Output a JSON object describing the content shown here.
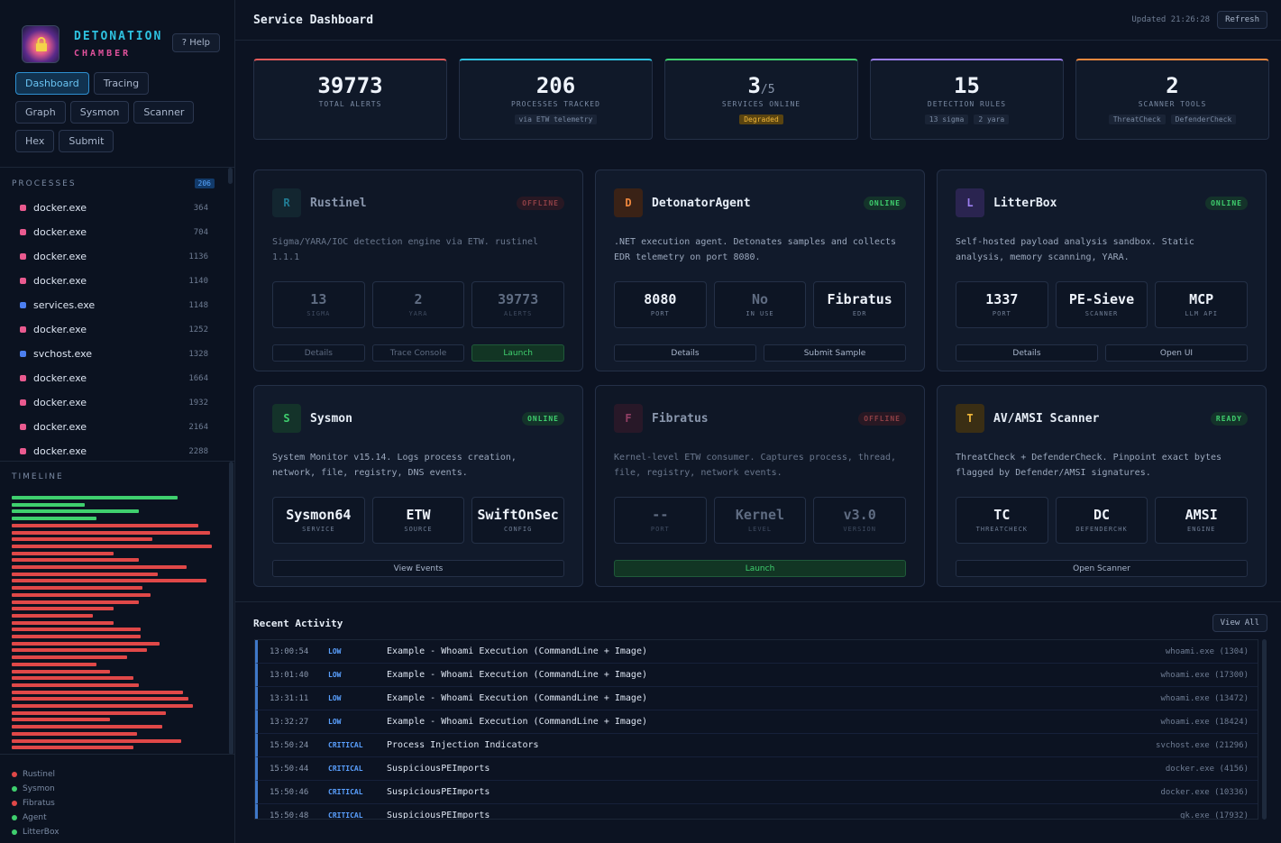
{
  "brand": {
    "title": "DETONATION",
    "subtitle": "CHAMBER",
    "help_label": "? Help"
  },
  "nav": [
    "Dashboard",
    "Tracing",
    "Graph",
    "Sysmon",
    "Scanner",
    "Hex",
    "Submit"
  ],
  "processes": {
    "label": "PROCESSES",
    "count": "206",
    "items": [
      {
        "name": "docker.exe",
        "pid": "364",
        "color": "pink"
      },
      {
        "name": "docker.exe",
        "pid": "704",
        "color": "pink"
      },
      {
        "name": "docker.exe",
        "pid": "1136",
        "color": "pink"
      },
      {
        "name": "docker.exe",
        "pid": "1140",
        "color": "pink"
      },
      {
        "name": "services.exe",
        "pid": "1148",
        "color": "blue"
      },
      {
        "name": "docker.exe",
        "pid": "1252",
        "color": "pink"
      },
      {
        "name": "svchost.exe",
        "pid": "1328",
        "color": "blue"
      },
      {
        "name": "docker.exe",
        "pid": "1664",
        "color": "pink"
      },
      {
        "name": "docker.exe",
        "pid": "1932",
        "color": "pink"
      },
      {
        "name": "docker.exe",
        "pid": "2164",
        "color": "pink"
      },
      {
        "name": "docker.exe",
        "pid": "2288",
        "color": "pink"
      }
    ]
  },
  "timeline": {
    "label": "TIMELINE",
    "events": [
      {
        "level": 0.98,
        "color": "#3fcf6e"
      },
      {
        "level": 0.43,
        "color": "#3fcf6e"
      },
      {
        "level": 0.75,
        "color": "#3fcf6e"
      },
      {
        "level": 0.5,
        "color": "#3fcf6e"
      },
      {
        "level": 1.1,
        "color": "#e04848"
      },
      {
        "level": 1.17,
        "color": "#e04848"
      },
      {
        "level": 0.83,
        "color": "#e04848"
      },
      {
        "level": 1.18,
        "color": "#e04848"
      },
      {
        "level": 0.6,
        "color": "#e04848"
      },
      {
        "level": 0.75,
        "color": "#e04848"
      },
      {
        "level": 1.03,
        "color": "#e04848"
      },
      {
        "level": 0.86,
        "color": "#e04848"
      },
      {
        "level": 1.15,
        "color": "#e04848"
      },
      {
        "level": 0.77,
        "color": "#e04848"
      },
      {
        "level": 0.82,
        "color": "#e04848"
      },
      {
        "level": 0.75,
        "color": "#e04848"
      },
      {
        "level": 0.6,
        "color": "#e04848"
      },
      {
        "level": 0.48,
        "color": "#e04848"
      },
      {
        "level": 0.6,
        "color": "#e04848"
      },
      {
        "level": 0.76,
        "color": "#e04848"
      },
      {
        "level": 0.76,
        "color": "#e04848"
      },
      {
        "level": 0.87,
        "color": "#e04848"
      },
      {
        "level": 0.8,
        "color": "#e04848"
      },
      {
        "level": 0.68,
        "color": "#e04848"
      },
      {
        "level": 0.5,
        "color": "#e04848"
      },
      {
        "level": 0.58,
        "color": "#e04848"
      },
      {
        "level": 0.72,
        "color": "#e04848"
      },
      {
        "level": 0.75,
        "color": "#e04848"
      },
      {
        "level": 1.01,
        "color": "#e04848"
      },
      {
        "level": 1.04,
        "color": "#e04848"
      },
      {
        "level": 1.07,
        "color": "#e04848"
      },
      {
        "level": 0.91,
        "color": "#e04848"
      },
      {
        "level": 0.58,
        "color": "#e04848"
      },
      {
        "level": 0.89,
        "color": "#e04848"
      },
      {
        "level": 0.74,
        "color": "#e04848"
      },
      {
        "level": 1.0,
        "color": "#e04848"
      },
      {
        "level": 0.72,
        "color": "#e04848"
      }
    ]
  },
  "legend": [
    {
      "label": "Rustinel",
      "color": "#e04848"
    },
    {
      "label": "Sysmon",
      "color": "#3fcf6e"
    },
    {
      "label": "Fibratus",
      "color": "#e04848"
    },
    {
      "label": "Agent",
      "color": "#3fcf6e"
    },
    {
      "label": "LitterBox",
      "color": "#3fcf6e"
    }
  ],
  "header": {
    "title": "Service Dashboard",
    "updated": "Updated 21:26:28",
    "refresh_label": "Refresh"
  },
  "stats": [
    {
      "value": "39773",
      "total": "",
      "label": "TOTAL ALERTS",
      "chips": [],
      "color": "#e25a5a"
    },
    {
      "value": "206",
      "total": "",
      "label": "PROCESSES TRACKED",
      "chips": [
        "via ETW telemetry"
      ],
      "color": "#2ec2e0"
    },
    {
      "value": "3",
      "total": "/5",
      "label": "SERVICES ONLINE",
      "chips": [
        "Degraded"
      ],
      "color": "#3fcf6e"
    },
    {
      "value": "15",
      "total": "",
      "label": "DETECTION RULES",
      "chips": [
        "13 sigma",
        "2 yara"
      ],
      "color": "#9b7ef0"
    },
    {
      "value": "2",
      "total": "",
      "label": "SCANNER TOOLS",
      "chips": [
        "ThreatCheck",
        "DefenderCheck"
      ],
      "color": "#f0883e"
    }
  ],
  "services": [
    {
      "initial": "R",
      "name": "Rustinel",
      "status": "OFFLINE",
      "status_type": "off",
      "dim": true,
      "icon_bg": "#163038",
      "icon_fg": "#2ec2e0",
      "desc": "Sigma/YARA/IOC detection engine via ETW. rustinel 1.1.1",
      "metrics": [
        {
          "v": "13",
          "l": "SIGMA"
        },
        {
          "v": "2",
          "l": "YARA"
        },
        {
          "v": "39773",
          "l": "ALERTS"
        }
      ],
      "actions": [
        {
          "l": "Details",
          "g": false
        },
        {
          "l": "Trace Console",
          "g": false
        },
        {
          "l": "Launch",
          "g": true
        }
      ]
    },
    {
      "initial": "D",
      "name": "DetonatorAgent",
      "status": "ONLINE",
      "status_type": "on",
      "dim": false,
      "icon_bg": "#3a2216",
      "icon_fg": "#f0883e",
      "desc": ".NET execution agent. Detonates samples and collects EDR telemetry on port 8080.",
      "metrics": [
        {
          "v": "8080",
          "l": "PORT"
        },
        {
          "v": "No",
          "l": "IN USE",
          "muted": true
        },
        {
          "v": "Fibratus",
          "l": "EDR"
        }
      ],
      "actions": [
        {
          "l": "Details",
          "g": false
        },
        {
          "l": "Submit Sample",
          "g": false
        }
      ]
    },
    {
      "initial": "L",
      "name": "LitterBox",
      "status": "ONLINE",
      "status_type": "on",
      "dim": false,
      "icon_bg": "#2a2450",
      "icon_fg": "#9b7ef0",
      "desc": "Self-hosted payload analysis sandbox. Static analysis, memory scanning, YARA.",
      "metrics": [
        {
          "v": "1337",
          "l": "PORT"
        },
        {
          "v": "PE-Sieve",
          "l": "SCANNER"
        },
        {
          "v": "MCP",
          "l": "LLM API"
        }
      ],
      "actions": [
        {
          "l": "Details",
          "g": false
        },
        {
          "l": "Open UI",
          "g": false
        }
      ]
    },
    {
      "initial": "S",
      "name": "Sysmon",
      "status": "ONLINE",
      "status_type": "on",
      "dim": false,
      "icon_bg": "#14332a",
      "icon_fg": "#3fcf6e",
      "desc": "System Monitor v15.14. Logs process creation, network, file, registry, DNS events.",
      "metrics": [
        {
          "v": "Sysmon64",
          "l": "SERVICE"
        },
        {
          "v": "ETW",
          "l": "SOURCE"
        },
        {
          "v": "SwiftOnSec",
          "l": "CONFIG"
        }
      ],
      "actions": [
        {
          "l": "View Events",
          "g": false
        }
      ]
    },
    {
      "initial": "F",
      "name": "Fibratus",
      "status": "OFFLINE",
      "status_type": "off",
      "dim": true,
      "icon_bg": "#3a1a2a",
      "icon_fg": "#e95a8f",
      "desc": "Kernel-level ETW consumer. Captures process, thread, file, registry, network events.",
      "metrics": [
        {
          "v": "--",
          "l": "PORT"
        },
        {
          "v": "Kernel",
          "l": "LEVEL"
        },
        {
          "v": "v3.0",
          "l": "VERSION"
        }
      ],
      "actions": [
        {
          "l": "Launch",
          "g": true
        }
      ]
    },
    {
      "initial": "T",
      "name": "AV/AMSI Scanner",
      "status": "READY",
      "status_type": "ready",
      "dim": false,
      "icon_bg": "#3a2e14",
      "icon_fg": "#f1b73a",
      "desc": "ThreatCheck + DefenderCheck. Pinpoint exact bytes flagged by Defender/AMSI signatures.",
      "metrics": [
        {
          "v": "TC",
          "l": "THREATCHECK"
        },
        {
          "v": "DC",
          "l": "DEFENDERCHK"
        },
        {
          "v": "AMSI",
          "l": "ENGINE"
        }
      ],
      "actions": [
        {
          "l": "Open Scanner",
          "g": false
        }
      ]
    }
  ],
  "activity": {
    "title": "Recent Activity",
    "view_all_label": "View All",
    "rows": [
      {
        "time": "13:00:54",
        "sev": "LOW",
        "msg": "Example - Whoami Execution (CommandLine + Image)",
        "src": "whoami.exe (1304)"
      },
      {
        "time": "13:01:40",
        "sev": "LOW",
        "msg": "Example - Whoami Execution (CommandLine + Image)",
        "src": "whoami.exe (17300)"
      },
      {
        "time": "13:31:11",
        "sev": "LOW",
        "msg": "Example - Whoami Execution (CommandLine + Image)",
        "src": "whoami.exe (13472)"
      },
      {
        "time": "13:32:27",
        "sev": "LOW",
        "msg": "Example - Whoami Execution (CommandLine + Image)",
        "src": "whoami.exe (18424)"
      },
      {
        "time": "15:50:24",
        "sev": "CRITICAL",
        "msg": "Process Injection Indicators",
        "src": "svchost.exe (21296)"
      },
      {
        "time": "15:50:44",
        "sev": "CRITICAL",
        "msg": "SuspiciousPEImports",
        "src": "docker.exe (4156)"
      },
      {
        "time": "15:50:46",
        "sev": "CRITICAL",
        "msg": "SuspiciousPEImports",
        "src": "docker.exe (10336)"
      },
      {
        "time": "15:50:48",
        "sev": "CRITICAL",
        "msg": "SuspiciousPEImports",
        "src": "gk.exe (17932)"
      }
    ]
  }
}
